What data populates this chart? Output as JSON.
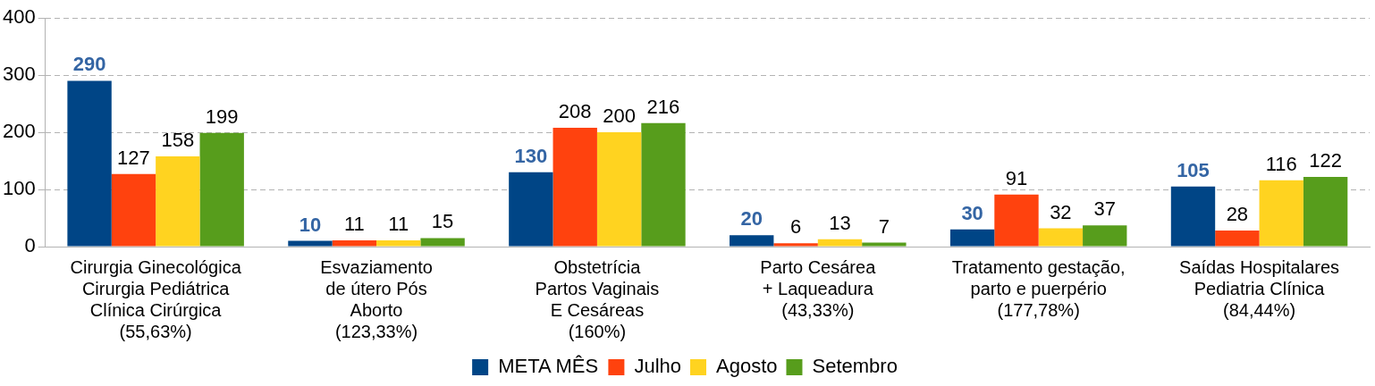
{
  "chart_data": {
    "type": "bar",
    "categories": [
      "Cirurgia Ginecológica\nCirurgia Pediátrica\nClínica Cirúrgica\n(55,63%)",
      "Esvaziamento\nde útero Pós\nAborto\n(123,33%)",
      "Obstetrícia\nPartos Vaginais\nE Cesáreas\n(160%)",
      "Parto Cesárea\n+ Laqueadura\n(43,33%)",
      "Tratamento gestação,\nparto e puerpério\n(177,78%)",
      "Saídas Hospitalares\nPediatria Clínica\n(84,44%)"
    ],
    "series": [
      {
        "name": "META MÊS",
        "color": "#004586",
        "values": [
          290,
          10,
          130,
          20,
          30,
          105
        ]
      },
      {
        "name": "Julho",
        "color": "#ff420e",
        "values": [
          127,
          11,
          208,
          6,
          91,
          28
        ]
      },
      {
        "name": "Agosto",
        "color": "#ffd320",
        "values": [
          158,
          11,
          200,
          13,
          32,
          116
        ]
      },
      {
        "name": "Setembro",
        "color": "#579d1c",
        "values": [
          199,
          15,
          216,
          7,
          37,
          122
        ]
      }
    ],
    "ylim": [
      0,
      400
    ],
    "yticks": [
      0,
      100,
      200,
      300,
      400
    ],
    "grid": "y",
    "legend": "bottom",
    "data_labels": true
  }
}
